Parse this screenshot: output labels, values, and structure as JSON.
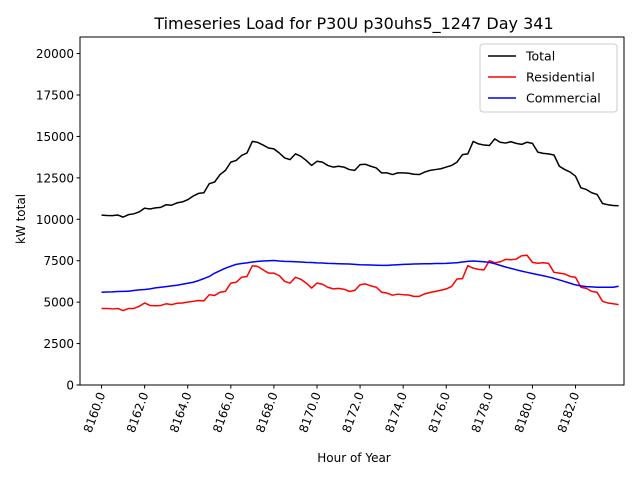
{
  "chart_data": {
    "type": "line",
    "title": "Timeseries Load for P30U p30uhs5_1247  Day 341",
    "xlabel": "Hour of Year",
    "ylabel": "kW total",
    "xlim": [
      8159.0,
      8184.25
    ],
    "ylim": [
      0,
      21000
    ],
    "xticks": [
      8160,
      8162,
      8164,
      8166,
      8168,
      8170,
      8172,
      8174,
      8176,
      8178,
      8180,
      8182
    ],
    "xtick_labels": [
      "8160.0",
      "8162.0",
      "8164.0",
      "8166.0",
      "8168.0",
      "8170.0",
      "8172.0",
      "8174.0",
      "8176.0",
      "8178.0",
      "8180.0",
      "8182.0"
    ],
    "yticks": [
      0,
      2500,
      5000,
      7500,
      10000,
      12500,
      15000,
      17500,
      20000
    ],
    "ytick_labels": [
      "0",
      "2500",
      "5000",
      "7500",
      "10000",
      "12500",
      "15000",
      "17500",
      "20000"
    ],
    "grid": false,
    "legend_position": "top-right",
    "x_start": 8160,
    "x_step": 0.25,
    "series": [
      {
        "name": "Total",
        "color": "#000000",
        "values": [
          10250,
          10230,
          10220,
          10260,
          10130,
          10280,
          10330,
          10450,
          10670,
          10620,
          10690,
          10720,
          10880,
          10850,
          10990,
          11050,
          11180,
          11400,
          11560,
          11600,
          12150,
          12250,
          12700,
          12950,
          13450,
          13550,
          13850,
          14000,
          14700,
          14640,
          14480,
          14300,
          14250,
          14000,
          13700,
          13600,
          13950,
          13800,
          13550,
          13250,
          13500,
          13450,
          13250,
          13150,
          13200,
          13150,
          13000,
          12950,
          13300,
          13320,
          13200,
          13100,
          12800,
          12800,
          12700,
          12800,
          12800,
          12780,
          12720,
          12700,
          12850,
          12950,
          13000,
          13050,
          13150,
          13250,
          13450,
          13900,
          13950,
          14700,
          14550,
          14480,
          14450,
          14850,
          14650,
          14600,
          14680,
          14580,
          14520,
          14650,
          14580,
          14050,
          13980,
          13950,
          13880,
          13200,
          13000,
          12850,
          12600,
          11900,
          11800,
          11600,
          11500,
          10950,
          10880,
          10830,
          10820
        ]
      },
      {
        "name": "Residential",
        "color": "#ff0000",
        "values": [
          4620,
          4620,
          4590,
          4620,
          4490,
          4620,
          4620,
          4750,
          4950,
          4800,
          4780,
          4800,
          4900,
          4850,
          4930,
          4950,
          5000,
          5050,
          5100,
          5080,
          5450,
          5400,
          5600,
          5650,
          6150,
          6200,
          6500,
          6550,
          7200,
          7150,
          6950,
          6750,
          6750,
          6600,
          6250,
          6150,
          6500,
          6380,
          6150,
          5850,
          6150,
          6080,
          5900,
          5800,
          5830,
          5780,
          5650,
          5700,
          6050,
          6100,
          5980,
          5900,
          5600,
          5550,
          5420,
          5480,
          5450,
          5430,
          5350,
          5350,
          5500,
          5580,
          5650,
          5720,
          5800,
          5950,
          6400,
          6420,
          7200,
          7050,
          6980,
          6950,
          7500,
          7380,
          7430,
          7580,
          7560,
          7600,
          7800,
          7830,
          7400,
          7350,
          7380,
          7340,
          6800,
          6750,
          6700,
          6550,
          6500,
          5900,
          5830,
          5650,
          5600,
          5050,
          4950,
          4900,
          4850
        ]
      },
      {
        "name": "Commercial",
        "color": "#0000ff",
        "values": [
          5600,
          5610,
          5620,
          5640,
          5650,
          5660,
          5700,
          5740,
          5760,
          5800,
          5860,
          5900,
          5940,
          5980,
          6020,
          6080,
          6140,
          6200,
          6300,
          6420,
          6550,
          6750,
          6900,
          7050,
          7170,
          7280,
          7330,
          7370,
          7420,
          7460,
          7480,
          7500,
          7510,
          7480,
          7460,
          7450,
          7440,
          7420,
          7400,
          7390,
          7370,
          7360,
          7340,
          7330,
          7320,
          7310,
          7300,
          7280,
          7260,
          7250,
          7240,
          7230,
          7220,
          7220,
          7240,
          7260,
          7280,
          7290,
          7300,
          7310,
          7320,
          7320,
          7330,
          7330,
          7340,
          7360,
          7380,
          7420,
          7460,
          7480,
          7460,
          7440,
          7400,
          7320,
          7220,
          7120,
          7040,
          6950,
          6870,
          6800,
          6730,
          6660,
          6590,
          6520,
          6440,
          6340,
          6240,
          6140,
          6040,
          5980,
          5940,
          5920,
          5900,
          5900,
          5900,
          5900,
          5960
        ]
      }
    ]
  }
}
